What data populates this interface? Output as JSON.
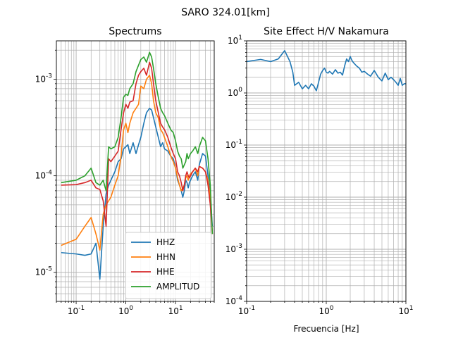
{
  "figure": {
    "suptitle": "SARO 324.01[km]"
  },
  "chart_data": [
    {
      "type": "line",
      "title": "Spectrums",
      "xlabel": "",
      "ylabel": "",
      "xscale": "log",
      "yscale": "log",
      "xlim": [
        0.04,
        60
      ],
      "ylim": [
        5e-06,
        0.0025
      ],
      "xticks": [
        0.1,
        1,
        10
      ],
      "xtick_labels": [
        "10^{-1}",
        "10^{0}",
        "10^{1}"
      ],
      "yticks": [
        1e-05,
        0.0001,
        0.001
      ],
      "ytick_labels": [
        "10^{-5}",
        "10^{-4}",
        "10^{-3}"
      ],
      "grid": true,
      "legend": "lower-right",
      "series": [
        {
          "name": "HHZ",
          "color": "#1f77b4",
          "x": [
            0.05,
            0.1,
            0.15,
            0.2,
            0.25,
            0.3,
            0.35,
            0.4,
            0.45,
            0.5,
            0.6,
            0.7,
            0.8,
            0.9,
            1.0,
            1.1,
            1.2,
            1.4,
            1.6,
            1.8,
            2.0,
            2.3,
            2.6,
            3.0,
            3.3,
            3.6,
            4.0,
            4.5,
            5,
            5.5,
            6,
            7,
            8,
            9,
            10,
            11,
            12,
            13,
            14,
            15,
            16,
            17,
            18,
            19,
            20,
            22,
            25,
            28,
            30,
            35,
            40,
            45,
            50,
            55
          ],
          "y": [
            1.6e-05,
            1.55e-05,
            1.5e-05,
            1.55e-05,
            2e-05,
            8.5e-06,
            3e-05,
            6.5e-05,
            8e-05,
            9e-05,
            0.00011,
            0.00014,
            0.00015,
            0.00019,
            0.0002,
            0.00021,
            0.00017,
            0.00022,
            0.00017,
            0.00021,
            0.00025,
            0.00035,
            0.00045,
            0.0005,
            0.00048,
            0.0004,
            0.00032,
            0.00025,
            0.0002,
            0.00022,
            0.00019,
            0.00018,
            0.00016,
            0.00015,
            0.00012,
            9e-05,
            8e-05,
            7e-05,
            6e-05,
            7e-05,
            9e-05,
            8.5e-05,
            7.5e-05,
            8.5e-05,
            9e-05,
            0.0001,
            0.00011,
            9e-05,
            0.00013,
            0.00017,
            0.00016,
            0.0001,
            6.5e-05,
            3e-05
          ]
        },
        {
          "name": "HHN",
          "color": "#ff7f0e",
          "x": [
            0.05,
            0.1,
            0.15,
            0.2,
            0.25,
            0.3,
            0.35,
            0.4,
            0.45,
            0.5,
            0.6,
            0.7,
            0.8,
            0.9,
            1.0,
            1.1,
            1.2,
            1.4,
            1.6,
            1.8,
            2.0,
            2.3,
            2.6,
            3.0,
            3.3,
            3.6,
            4.0,
            4.5,
            5,
            5.5,
            6,
            7,
            8,
            9,
            10,
            11,
            12,
            13,
            14,
            15,
            16,
            17,
            18,
            19,
            20,
            22,
            25,
            28,
            30,
            35,
            40,
            45,
            50,
            55
          ],
          "y": [
            1.9e-05,
            2.2e-05,
            3e-05,
            3.7e-05,
            2.5e-05,
            1.7e-05,
            4e-05,
            5e-05,
            5.5e-05,
            6e-05,
            8e-05,
            0.0001,
            0.00016,
            0.0003,
            0.00035,
            0.00028,
            0.00035,
            0.00045,
            0.0005,
            0.00055,
            0.00085,
            0.0008,
            0.001,
            0.0011,
            0.0009,
            0.0006,
            0.00045,
            0.0004,
            0.0003,
            0.00028,
            0.00025,
            0.0002,
            0.00016,
            0.00014,
            0.00012,
            9.5e-05,
            8e-05,
            7e-05,
            7.5e-05,
            8e-05,
            9.5e-05,
            0.0001,
            9e-05,
            0.0001,
            0.000105,
            0.00011,
            0.00012,
            0.0001,
            0.000125,
            0.00012,
            0.00011,
            9e-05,
            6e-05,
            2.5e-05
          ]
        },
        {
          "name": "HHE",
          "color": "#d62728",
          "x": [
            0.05,
            0.1,
            0.15,
            0.2,
            0.25,
            0.3,
            0.35,
            0.4,
            0.45,
            0.5,
            0.6,
            0.7,
            0.8,
            0.9,
            1.0,
            1.1,
            1.2,
            1.4,
            1.6,
            1.8,
            2.0,
            2.3,
            2.6,
            3.0,
            3.3,
            3.6,
            4.0,
            4.5,
            5,
            5.5,
            6,
            7,
            8,
            9,
            10,
            11,
            12,
            13,
            14,
            15,
            16,
            17,
            18,
            19,
            20,
            22,
            25,
            28,
            30,
            35,
            40,
            45,
            50,
            55
          ],
          "y": [
            8e-05,
            8.1e-05,
            8.5e-05,
            9e-05,
            7.5e-05,
            7.2e-05,
            5.5e-05,
            3e-05,
            0.00015,
            0.00014,
            0.00016,
            0.00018,
            0.0003,
            0.00045,
            0.00055,
            0.0005,
            0.00058,
            0.0006,
            0.0009,
            0.0011,
            0.0012,
            0.0013,
            0.0011,
            0.0015,
            0.0013,
            0.0009,
            0.0006,
            0.00045,
            0.00035,
            0.00032,
            0.0003,
            0.00025,
            0.0002,
            0.00017,
            0.00015,
            0.00011,
            0.0001,
            8.5e-05,
            7e-05,
            8e-05,
            0.0001,
            0.00011,
            0.0001,
            9.5e-05,
            0.0001,
            0.00011,
            0.00012,
            0.00011,
            0.000125,
            0.00012,
            0.00011,
            8e-05,
            5e-05,
            2.5e-05
          ]
        },
        {
          "name": "AMPLITUD",
          "color": "#2ca02c",
          "x": [
            0.05,
            0.1,
            0.15,
            0.2,
            0.25,
            0.3,
            0.35,
            0.4,
            0.45,
            0.5,
            0.6,
            0.7,
            0.8,
            0.9,
            1.0,
            1.1,
            1.2,
            1.4,
            1.6,
            1.8,
            2.0,
            2.3,
            2.6,
            3.0,
            3.3,
            3.6,
            4.0,
            4.5,
            5,
            5.5,
            6,
            7,
            8,
            9,
            10,
            11,
            12,
            13,
            14,
            15,
            16,
            17,
            18,
            19,
            20,
            22,
            25,
            28,
            30,
            35,
            40,
            45,
            50,
            55
          ],
          "y": [
            8.5e-05,
            9e-05,
            0.0001,
            0.00012,
            8.5e-05,
            8e-05,
            9e-05,
            7e-05,
            0.0002,
            0.00019,
            0.0002,
            0.00025,
            0.0004,
            0.00065,
            0.0007,
            0.00068,
            0.0008,
            0.0009,
            0.0012,
            0.0014,
            0.0016,
            0.0017,
            0.0015,
            0.0019,
            0.0017,
            0.0013,
            0.0009,
            0.00065,
            0.0005,
            0.00045,
            0.00042,
            0.00035,
            0.0003,
            0.00028,
            0.00023,
            0.00018,
            0.00016,
            0.00015,
            0.00012,
            0.00013,
            0.00014,
            0.00017,
            0.00015,
            0.00016,
            0.00017,
            0.00018,
            0.0002,
            0.00017,
            0.0002,
            0.00025,
            0.00023,
            0.00015,
            8e-05,
            2.5e-05
          ]
        }
      ]
    },
    {
      "type": "line",
      "title": "Site Effect H/V Nakamura",
      "xlabel": "Frecuencia [Hz]",
      "ylabel": "",
      "xscale": "log",
      "yscale": "log",
      "xlim": [
        0.1,
        10
      ],
      "ylim": [
        0.0001,
        10
      ],
      "xticks": [
        0.1,
        1,
        10
      ],
      "xtick_labels": [
        "10^{-1}",
        "10^{0}",
        "10^{1}"
      ],
      "yticks": [
        0.0001,
        0.001,
        0.01,
        0.1,
        1,
        10
      ],
      "ytick_labels": [
        "10^{-4}",
        "10^{-3}",
        "10^{-2}",
        "10^{-1}",
        "10^{0}",
        "10^{1}"
      ],
      "grid": true,
      "series": [
        {
          "name": "",
          "color": "#1f77b4",
          "x": [
            0.1,
            0.15,
            0.2,
            0.25,
            0.3,
            0.35,
            0.38,
            0.4,
            0.45,
            0.5,
            0.55,
            0.6,
            0.65,
            0.7,
            0.75,
            0.8,
            0.85,
            0.9,
            0.95,
            1.0,
            1.05,
            1.1,
            1.2,
            1.3,
            1.4,
            1.5,
            1.6,
            1.7,
            1.8,
            1.9,
            2.0,
            2.1,
            2.2,
            2.4,
            2.6,
            2.8,
            3.0,
            3.3,
            3.6,
            4.0,
            4.5,
            5.0,
            5.5,
            6.0,
            6.5,
            7.0,
            7.5,
            8.0,
            8.5,
            9.0,
            9.5,
            10.0
          ],
          "y": [
            4.0,
            4.4,
            4.0,
            4.5,
            6.5,
            4.0,
            2.5,
            1.4,
            1.6,
            1.2,
            1.4,
            1.2,
            1.5,
            1.35,
            1.1,
            1.6,
            2.3,
            2.7,
            3.0,
            2.5,
            2.4,
            2.6,
            2.3,
            2.8,
            2.4,
            2.5,
            2.2,
            3.3,
            4.5,
            4.0,
            5.0,
            4.2,
            3.8,
            3.3,
            3.0,
            2.5,
            2.6,
            2.3,
            2.1,
            2.7,
            2.0,
            1.7,
            2.4,
            1.8,
            2.0,
            1.8,
            1.6,
            1.4,
            1.9,
            1.4,
            1.5,
            1.5
          ]
        }
      ]
    }
  ]
}
